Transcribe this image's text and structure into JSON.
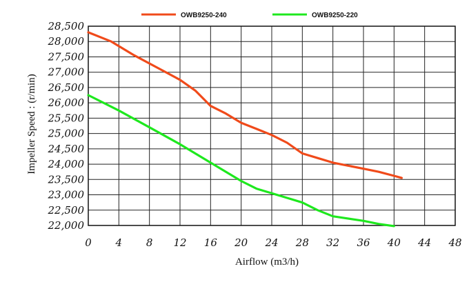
{
  "chart_data": {
    "type": "line",
    "title": "",
    "xlabel": "Airflow (m3/h)",
    "ylabel": "Impeller Speed : (r/min)",
    "xlim": [
      0,
      48
    ],
    "ylim": [
      22000,
      28500
    ],
    "x_ticks": [
      0,
      4,
      8,
      12,
      16,
      20,
      24,
      28,
      32,
      36,
      40,
      44,
      48
    ],
    "y_ticks": [
      22000,
      22500,
      23000,
      23500,
      24000,
      24500,
      25000,
      25500,
      26000,
      26500,
      27000,
      27500,
      28000,
      28500
    ],
    "x_tick_labels": [
      "0",
      "4",
      "8",
      "12",
      "16",
      "20",
      "24",
      "28",
      "32",
      "36",
      "40",
      "44",
      "48"
    ],
    "y_tick_labels": [
      "22,000",
      "22,500",
      "23,000",
      "23,500",
      "24,000",
      "24,500",
      "25,000",
      "25,500",
      "26,000",
      "26,500",
      "27,000",
      "27,500",
      "28,000",
      "28,500"
    ],
    "grid": true,
    "legend_position": "top",
    "series": [
      {
        "name": "OWB9250-240",
        "color": "#f04a1a",
        "x": [
          0,
          3,
          6,
          9,
          12,
          14,
          16,
          18,
          20,
          22,
          24,
          26,
          28,
          30,
          32,
          34,
          36,
          38,
          40,
          41
        ],
        "y": [
          28300,
          28000,
          27550,
          27150,
          26750,
          26400,
          25900,
          25650,
          25350,
          25150,
          24950,
          24700,
          24350,
          24200,
          24050,
          23950,
          23850,
          23750,
          23620,
          23550
        ]
      },
      {
        "name": "OWB9250-220",
        "color": "#1ee81e",
        "x": [
          0,
          2,
          4,
          8,
          12,
          16,
          20,
          22,
          24,
          26,
          28,
          30,
          32,
          36,
          38,
          40
        ],
        "y": [
          26250,
          26000,
          25750,
          25200,
          24650,
          24050,
          23450,
          23200,
          23050,
          22900,
          22750,
          22500,
          22300,
          22150,
          22050,
          21980
        ]
      }
    ]
  }
}
